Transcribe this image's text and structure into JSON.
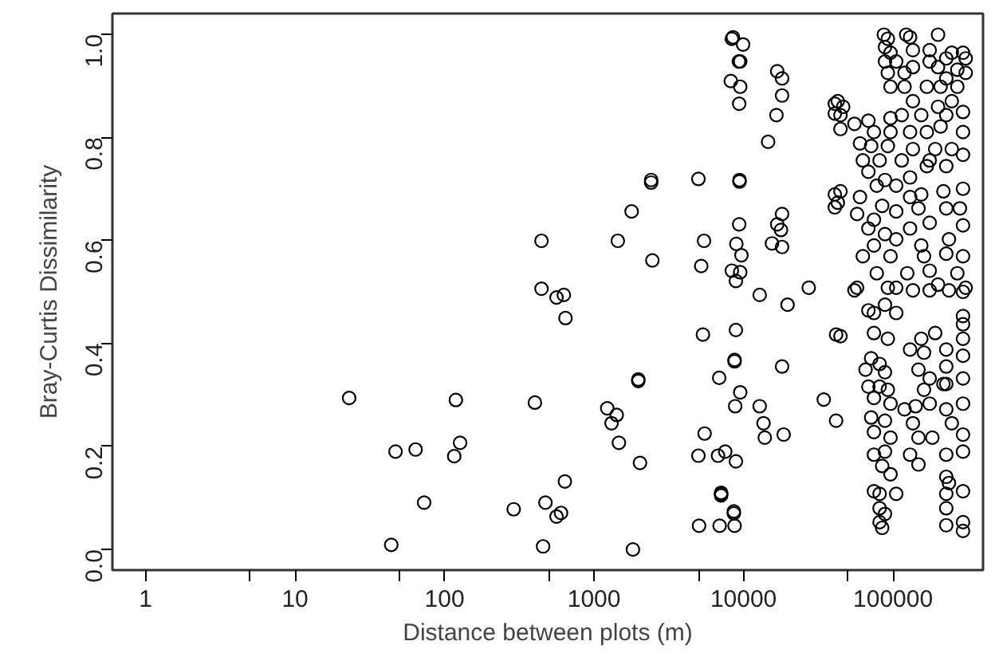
{
  "chart_data": {
    "type": "scatter",
    "xlabel": "Distance between plots (m)",
    "ylabel": "Bray-Curtis Dissimilarity",
    "log": "x",
    "marker": "circle",
    "grid": false,
    "xlim": [
      0.6,
      400000
    ],
    "ylim": [
      -0.04,
      1.04
    ],
    "xticks": [
      1,
      {
        "value": 5,
        "label": null
      },
      10,
      {
        "value": 50,
        "label": null
      },
      100,
      {
        "value": 500,
        "label": null
      },
      1000,
      {
        "value": 5000,
        "label": null
      },
      10000,
      {
        "value": 50000,
        "label": null
      },
      100000
    ],
    "yticks": [
      {
        "value": 0,
        "label": "0.0"
      },
      0.2,
      0.4,
      0.6,
      0.8,
      {
        "value": 1,
        "label": "1.0"
      }
    ],
    "series": [
      {
        "color": "#000000",
        "x": [
          23,
          47,
          64,
          44,
          73,
          119,
          127,
          116,
          290,
          402,
          445,
          445,
          561,
          628,
          644,
          638,
          473,
          601,
          561,
          456,
          1225,
          1417,
          1309,
          1466,
          1442,
          1784,
          1977,
          1977,
          2029,
          1820,
          2410,
          2410,
          2455,
          4990,
          5440,
          5210,
          5350,
          5490,
          4990,
          5040,
          6870,
          6750,
          7540,
          8890,
          7080,
          7080,
          7080,
          6920,
          8710,
          8610,
          8610,
          8890,
          8710,
          8710,
          9500,
          8790,
          8350,
          8500,
          9930,
          9300,
          9500,
          8220,
          9500,
          9350,
          9400,
          9400,
          9350,
          8950,
          9680,
          8350,
          9500,
          8890,
          12820,
          19700,
          27300,
          34400,
          18100,
          12820,
          13600,
          13870,
          18550,
          14600,
          16600,
          18100,
          16800,
          18100,
          18100,
          16800,
          17800,
          15500,
          18100,
          40800,
          40800,
          40800,
          40800,
          41600,
          41600,
          86900,
          92300,
          122500,
          130000,
          200000,
          88300,
          96200,
          135800,
          175800,
          247200,
          293800,
          88300,
          105000,
          175800,
          227000,
          306200,
          135800,
          200000,
          269200,
          306200,
          92300,
          119400,
          227000,
          96200,
          119400,
          168300,
          208000,
          269200,
          135800,
          247200,
          200000,
          42700,
          46400,
          44500,
          44500,
          55200,
          68400,
          96200,
          114300,
          154500,
          227000,
          293800,
          74500,
          96200,
          130000,
          168300,
          208000,
          293800,
          60100,
          71400,
          92300,
          135800,
          191400,
          247200,
          62800,
          81300,
          114300,
          175800,
          293800,
          68400,
          88300,
          130000,
          168300,
          227000,
          77800,
          105000,
          44500,
          42700,
          60100,
          84600,
          130000,
          154500,
          217300,
          293800,
          57500,
          74500,
          105000,
          147900,
          227000,
          280000,
          68400,
          88300,
          130000,
          175800,
          293800,
          74500,
          105000,
          154500,
          236600,
          62800,
          96200,
          161100,
          227000,
          293800,
          77800,
          124500,
          175800,
          269200,
          57500,
          105000,
          200000,
          306200,
          55200,
          92300,
          135800,
          175800,
          236600,
          293800,
          68400,
          74500,
          88300,
          105000,
          293800,
          44500,
          74500,
          92300,
          293800,
          293800,
          191400,
          154500,
          130000,
          161100,
          227000,
          293800,
          71400,
          81300,
          88300,
          147900,
          175800,
          227000,
          227000,
          293800,
          65500,
          68400,
          81300,
          92300,
          161100,
          217300,
          293800,
          74500,
          96200,
          119400,
          141600,
          175800,
          227000,
          71400,
          88300,
          135800,
          247200,
          293800,
          74500,
          96200,
          147900,
          183200,
          88300,
          74500,
          130000,
          227000,
          293800,
          84600,
          96200,
          147900,
          227000,
          236600,
          74500,
          81300,
          105000,
          227000,
          293800,
          81300,
          88300,
          227000,
          81300,
          84600,
          227000,
          293800,
          293800
        ],
        "values": [
          0.294,
          0.19,
          0.194,
          0.009,
          0.091,
          0.29,
          0.207,
          0.181,
          0.078,
          0.285,
          0.599,
          0.506,
          0.489,
          0.494,
          0.449,
          0.132,
          0.091,
          0.071,
          0.064,
          0.006,
          0.274,
          0.261,
          0.245,
          0.207,
          0.599,
          0.656,
          0.33,
          0.327,
          0.168,
          0.0,
          0.717,
          0.712,
          0.561,
          0.719,
          0.599,
          0.55,
          0.417,
          0.225,
          0.182,
          0.046,
          0.333,
          0.182,
          0.19,
          0.171,
          0.105,
          0.108,
          0.11,
          0.046,
          0.046,
          0.074,
          0.07,
          0.426,
          0.368,
          0.365,
          0.305,
          0.278,
          0.991,
          0.994,
          0.98,
          0.947,
          0.947,
          0.909,
          0.898,
          0.865,
          0.717,
          0.714,
          0.631,
          0.593,
          0.571,
          0.541,
          0.538,
          0.521,
          0.494,
          0.475,
          0.508,
          0.291,
          0.355,
          0.278,
          0.245,
          0.217,
          0.223,
          0.791,
          0.843,
          0.881,
          0.928,
          0.914,
          0.651,
          0.631,
          0.62,
          0.594,
          0.587,
          0.865,
          0.846,
          0.689,
          0.664,
          0.417,
          0.25,
          0.999,
          0.991,
          0.999,
          0.994,
          0.999,
          0.975,
          0.964,
          0.969,
          0.969,
          0.964,
          0.964,
          0.947,
          0.947,
          0.947,
          0.953,
          0.953,
          0.936,
          0.936,
          0.931,
          0.925,
          0.925,
          0.925,
          0.914,
          0.898,
          0.898,
          0.898,
          0.898,
          0.898,
          0.87,
          0.87,
          0.859,
          0.87,
          0.859,
          0.843,
          0.816,
          0.826,
          0.832,
          0.837,
          0.843,
          0.843,
          0.843,
          0.849,
          0.81,
          0.81,
          0.81,
          0.81,
          0.821,
          0.81,
          0.788,
          0.783,
          0.783,
          0.777,
          0.777,
          0.777,
          0.755,
          0.755,
          0.755,
          0.755,
          0.766,
          0.733,
          0.717,
          0.722,
          0.744,
          0.744,
          0.706,
          0.706,
          0.695,
          0.673,
          0.684,
          0.667,
          0.684,
          0.689,
          0.695,
          0.7,
          0.651,
          0.64,
          0.656,
          0.662,
          0.662,
          0.662,
          0.623,
          0.612,
          0.623,
          0.634,
          0.629,
          0.59,
          0.602,
          0.59,
          0.602,
          0.569,
          0.569,
          0.569,
          0.574,
          0.569,
          0.536,
          0.536,
          0.541,
          0.536,
          0.508,
          0.508,
          0.514,
          0.508,
          0.503,
          0.508,
          0.503,
          0.503,
          0.503,
          0.5,
          0.464,
          0.459,
          0.475,
          0.459,
          0.453,
          0.414,
          0.42,
          0.409,
          0.437,
          0.409,
          0.42,
          0.409,
          0.388,
          0.382,
          0.388,
          0.376,
          0.371,
          0.36,
          0.344,
          0.349,
          0.332,
          0.355,
          0.321,
          0.332,
          0.349,
          0.316,
          0.316,
          0.31,
          0.31,
          0.321,
          0.283,
          0.294,
          0.283,
          0.272,
          0.278,
          0.283,
          0.272,
          0.256,
          0.25,
          0.245,
          0.245,
          0.223,
          0.228,
          0.217,
          0.217,
          0.217,
          0.19,
          0.184,
          0.184,
          0.184,
          0.19,
          0.162,
          0.146,
          0.165,
          0.141,
          0.129,
          0.113,
          0.108,
          0.108,
          0.108,
          0.113,
          0.08,
          0.069,
          0.08,
          0.053,
          0.042,
          0.047,
          0.053,
          0.036
        ]
      }
    ]
  }
}
